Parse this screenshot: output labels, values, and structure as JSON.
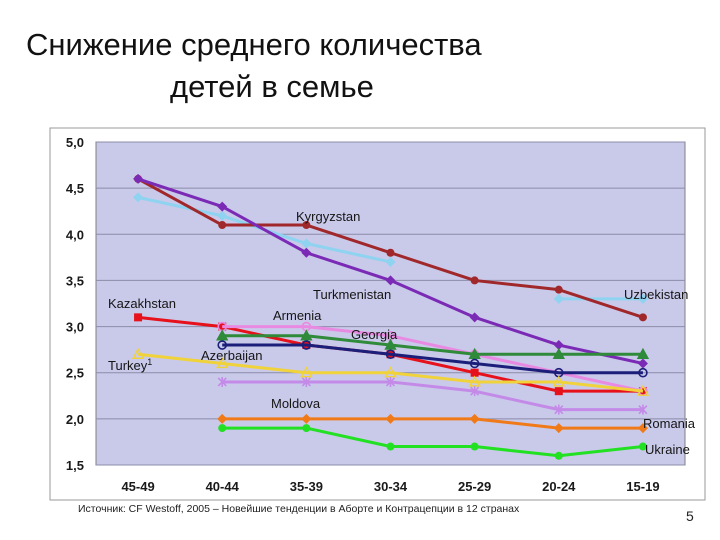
{
  "slide": {
    "title_line1": "Снижение среднего количества",
    "title_line2": "детей в семье",
    "source": "Источник: CF Westoff, 2005 – Новейшие тенденции в Аборте и Контрацепции в 12 странах",
    "page_number": "5"
  },
  "chart_data": {
    "type": "line",
    "title": "",
    "xlabel": "",
    "ylabel": "",
    "categories": [
      "45-49",
      "40-44",
      "35-39",
      "30-34",
      "25-29",
      "20-24",
      "15-19"
    ],
    "ylim": [
      1.5,
      5.0
    ],
    "yticks": [
      "5,0",
      "4,5",
      "4,0",
      "3,5",
      "3,0",
      "2,5",
      "2,0",
      "1,5"
    ],
    "grid": "horizontal",
    "background": "#c9c9ea",
    "series": [
      {
        "name": "Kyrgyzstan",
        "color": "#8ed3f0",
        "marker": "diamond",
        "values": [
          4.4,
          4.2,
          3.9,
          3.7,
          null,
          3.3,
          3.3
        ]
      },
      {
        "name": "Uzbekistan",
        "color": "#a0282a",
        "marker": "circle",
        "values": [
          4.6,
          4.1,
          4.1,
          3.8,
          3.5,
          3.4,
          3.1
        ]
      },
      {
        "name": "Turkmenistan",
        "color": "#7b2ab5",
        "marker": "diamond",
        "values": [
          4.6,
          4.3,
          3.8,
          3.5,
          3.1,
          2.8,
          2.6
        ]
      },
      {
        "name": "Kazakhstan",
        "color": "#e6111a",
        "marker": "square",
        "values": [
          3.1,
          3.0,
          2.8,
          2.7,
          2.5,
          2.3,
          2.3
        ]
      },
      {
        "name": "Armenia",
        "color": "#e98ae2",
        "marker": "circle",
        "values": [
          null,
          3.0,
          3.0,
          2.9,
          2.7,
          2.5,
          2.3
        ]
      },
      {
        "name": "Georgia",
        "color": "#2f8a3a",
        "marker": "triangle",
        "values": [
          null,
          2.9,
          2.9,
          2.8,
          2.7,
          2.7,
          2.7
        ]
      },
      {
        "name": "Azerbaijan",
        "color": "#1b1f7a",
        "marker": "circle",
        "values": [
          null,
          2.8,
          2.8,
          2.7,
          2.6,
          2.5,
          2.5
        ]
      },
      {
        "name": "Turkey",
        "color": "#f0d23a",
        "marker": "triangle",
        "values": [
          2.7,
          2.6,
          2.5,
          2.5,
          2.4,
          2.4,
          2.3
        ]
      },
      {
        "name": "Moldova",
        "color": "#c48ae8",
        "marker": "x",
        "values": [
          null,
          2.4,
          2.4,
          2.4,
          2.3,
          2.1,
          2.1
        ]
      },
      {
        "name": "Romania",
        "color": "#f07a18",
        "marker": "diamond",
        "values": [
          null,
          2.0,
          2.0,
          2.0,
          2.0,
          1.9,
          1.9
        ]
      },
      {
        "name": "Ukraine",
        "color": "#22e022",
        "marker": "circle",
        "values": [
          null,
          1.9,
          1.9,
          1.7,
          1.7,
          1.6,
          1.7
        ]
      }
    ],
    "annotations": [
      {
        "text": "Kyrgyzstan"
      },
      {
        "text": "Uzbekistan"
      },
      {
        "text": "Turkmenistan"
      },
      {
        "text": "Kazakhstan"
      },
      {
        "text": "Armenia"
      },
      {
        "text": "Georgia"
      },
      {
        "text": "Azerbaijan"
      },
      {
        "text": "Turkey",
        "sup": "1"
      },
      {
        "text": "Moldova"
      },
      {
        "text": "Romania"
      },
      {
        "text": "Ukraine"
      }
    ]
  }
}
